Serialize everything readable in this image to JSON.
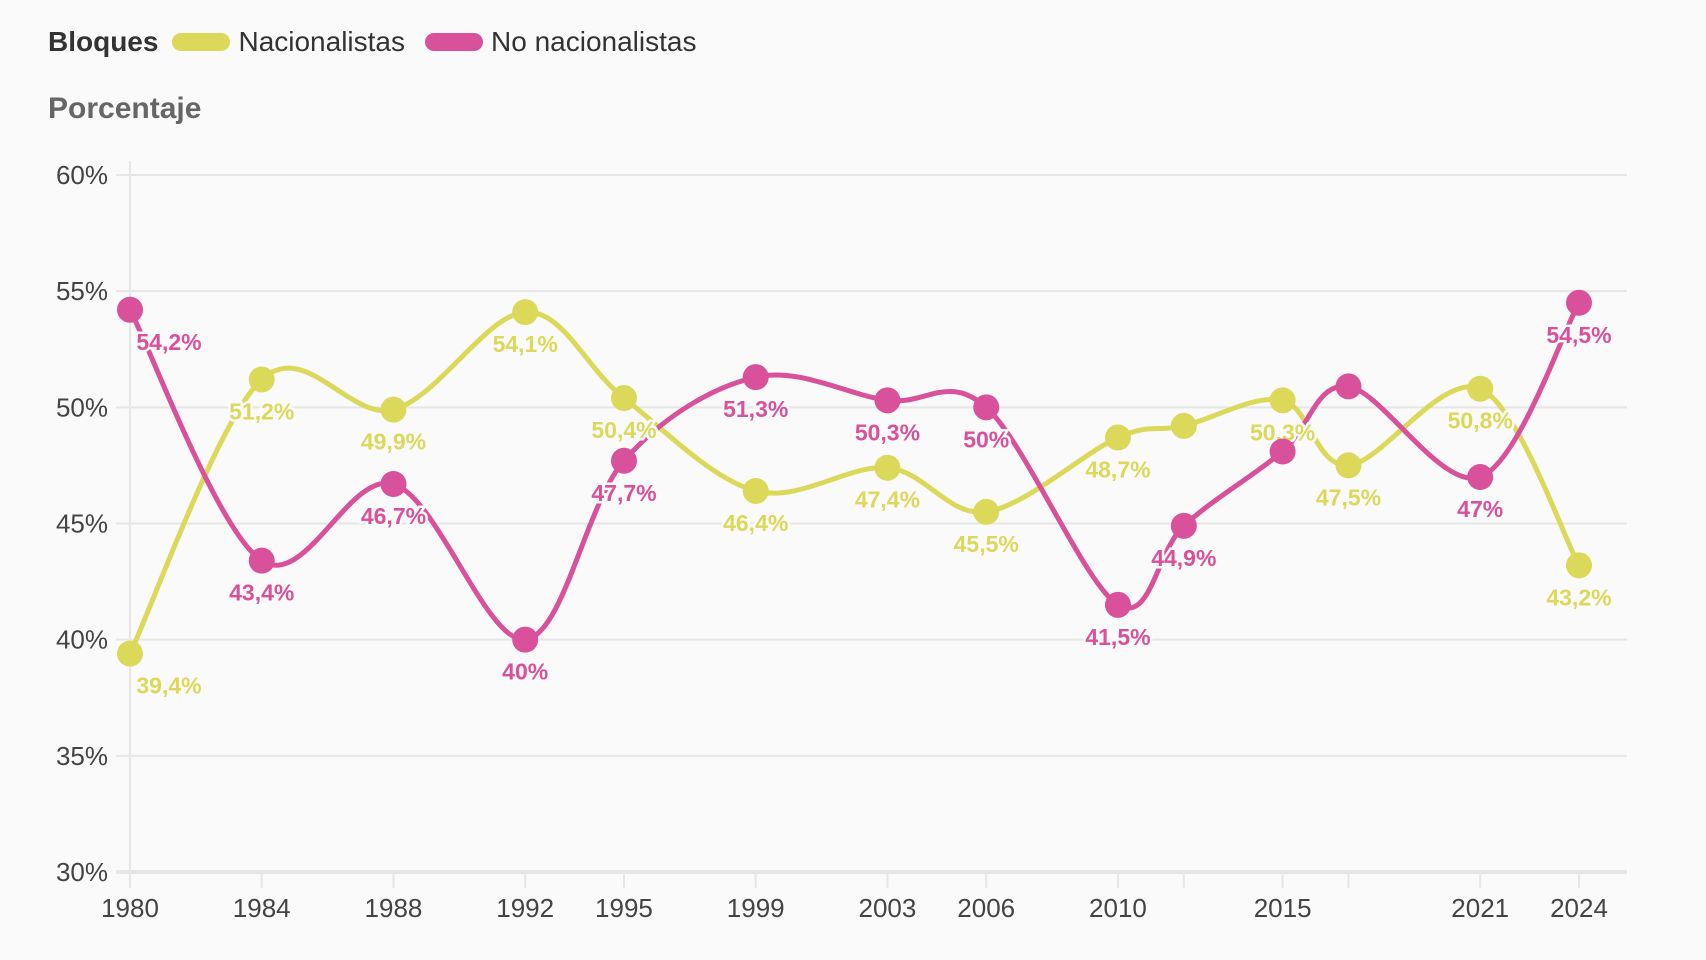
{
  "chart_data": {
    "type": "line",
    "legend_title": "Bloques",
    "ylabel": "Porcentaje",
    "xlabel": "",
    "x": [
      1980,
      1984,
      1988,
      1992,
      1995,
      1999,
      2003,
      2006,
      2010,
      2012,
      2015,
      2017,
      2021,
      2024
    ],
    "x_tick_labels": [
      "1980",
      "1984",
      "1988",
      "1992",
      "1995",
      "1999",
      "2003",
      "2006",
      "2010",
      "",
      "2015",
      "",
      "2021",
      "2024"
    ],
    "ylim": [
      30,
      60
    ],
    "y_ticks": [
      "30%",
      "35%",
      "40%",
      "45%",
      "50%",
      "55%",
      "60%"
    ],
    "grid": true,
    "legend_position": "top-left",
    "series": [
      {
        "name": "Nacionalistas",
        "color": "#dcd85a",
        "values": [
          39.4,
          51.2,
          49.9,
          54.1,
          50.4,
          46.4,
          47.4,
          45.5,
          48.7,
          49.2,
          50.3,
          47.5,
          50.8,
          43.2
        ],
        "labels": [
          "39,4%",
          "51,2%",
          "49,9%",
          "54,1%",
          "50,4%",
          "46,4%",
          "47,4%",
          "45,5%",
          "48,7%",
          null,
          "50,3%",
          "47,5%",
          "50,8%",
          "43,2%"
        ]
      },
      {
        "name": "No nacionalistas",
        "color": "#d9509b",
        "values": [
          54.2,
          43.4,
          46.7,
          40.0,
          47.7,
          51.3,
          50.3,
          50.0,
          41.5,
          44.9,
          48.1,
          50.9,
          47.0,
          54.5
        ],
        "labels": [
          "54,2%",
          "43,4%",
          "46,7%",
          "40%",
          "47,7%",
          "51,3%",
          "50,3%",
          "50%",
          "41,5%",
          "44,9%",
          null,
          null,
          "47%",
          "54,5%"
        ]
      }
    ]
  }
}
